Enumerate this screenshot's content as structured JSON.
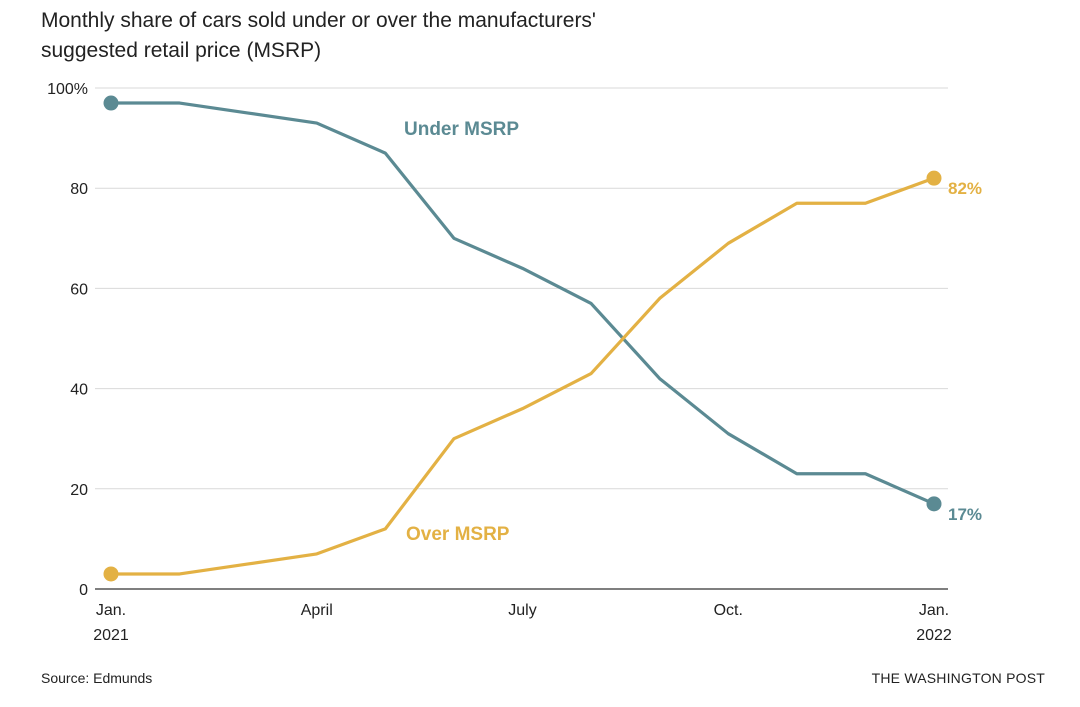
{
  "chart_data": {
    "type": "line",
    "title_line1": "Monthly share of cars sold under or over the manufacturers'",
    "title_line2": "suggested retail price (MSRP)",
    "x": [
      "Jan. 2021",
      "Feb. 2021",
      "Mar. 2021",
      "Apr. 2021",
      "May 2021",
      "Jun. 2021",
      "Jul. 2021",
      "Aug. 2021",
      "Sep. 2021",
      "Oct. 2021",
      "Nov. 2021",
      "Dec. 2021",
      "Jan. 2022"
    ],
    "x_ticks": [
      {
        "index": 0,
        "line1": "Jan.",
        "line2": "2021"
      },
      {
        "index": 3,
        "line1": "April",
        "line2": ""
      },
      {
        "index": 6,
        "line1": "July",
        "line2": ""
      },
      {
        "index": 9,
        "line1": "Oct.",
        "line2": ""
      },
      {
        "index": 12,
        "line1": "Jan.",
        "line2": "2022"
      }
    ],
    "y_ticks": [
      {
        "value": 0,
        "label": "0"
      },
      {
        "value": 20,
        "label": "20"
      },
      {
        "value": 40,
        "label": "40"
      },
      {
        "value": 60,
        "label": "60"
      },
      {
        "value": 80,
        "label": "80"
      },
      {
        "value": 100,
        "label": "100%"
      }
    ],
    "ylim": [
      0,
      100
    ],
    "grid": true,
    "series": [
      {
        "name": "Under MSRP",
        "color": "#5b8a93",
        "values": [
          97,
          97,
          95,
          93,
          87,
          70,
          64,
          57,
          42,
          31,
          23,
          23,
          17
        ],
        "end_label": "17%"
      },
      {
        "name": "Over MSRP",
        "color": "#e3b144",
        "values": [
          3,
          3,
          5,
          7,
          12,
          30,
          36,
          43,
          58,
          69,
          77,
          77,
          82
        ],
        "end_label": "82%"
      }
    ]
  },
  "footer": {
    "source": "Source: Edmunds",
    "brand": "THE WASHINGTON POST"
  }
}
